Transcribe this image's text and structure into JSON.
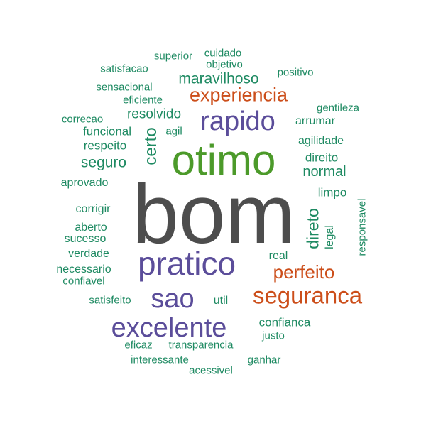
{
  "palette": {
    "dark_gray": "#4d4d4d",
    "green": "#4c9a2a",
    "purple": "#5b4d9a",
    "orange": "#cc4e1a",
    "teal": "#1e8a62"
  },
  "words": [
    {
      "text": "bom",
      "color": "#4d4d4d",
      "weight": 100,
      "orientation": "horizontal"
    },
    {
      "text": "otimo",
      "color": "#4c9a2a",
      "weight": 62,
      "orientation": "horizontal"
    },
    {
      "text": "pratico",
      "color": "#5b4d9a",
      "weight": 48,
      "orientation": "horizontal"
    },
    {
      "text": "excelente",
      "color": "#5b4d9a",
      "weight": 40,
      "orientation": "horizontal"
    },
    {
      "text": "sao",
      "color": "#5b4d9a",
      "weight": 38,
      "orientation": "horizontal"
    },
    {
      "text": "rapido",
      "color": "#5b4d9a",
      "weight": 38,
      "orientation": "horizontal"
    },
    {
      "text": "seguranca",
      "color": "#cc4e1a",
      "weight": 35,
      "orientation": "horizontal"
    },
    {
      "text": "experiencia",
      "color": "#cc4e1a",
      "weight": 28,
      "orientation": "horizontal"
    },
    {
      "text": "perfeito",
      "color": "#cc4e1a",
      "weight": 28,
      "orientation": "horizontal"
    },
    {
      "text": "certo",
      "color": "#1e8a62",
      "weight": 24,
      "orientation": "vertical"
    },
    {
      "text": "direto",
      "color": "#1e8a62",
      "weight": 24,
      "orientation": "vertical"
    },
    {
      "text": "maravilhoso",
      "color": "#1e8a62",
      "weight": 22,
      "orientation": "horizontal"
    },
    {
      "text": "seguro",
      "color": "#1e8a62",
      "weight": 22,
      "orientation": "horizontal"
    },
    {
      "text": "normal",
      "color": "#1e8a62",
      "weight": 21,
      "orientation": "horizontal"
    },
    {
      "text": "resolvido",
      "color": "#1e8a62",
      "weight": 20,
      "orientation": "horizontal"
    },
    {
      "text": "funcional",
      "color": "#1e8a62",
      "weight": 18,
      "orientation": "horizontal"
    },
    {
      "text": "respeito",
      "color": "#1e8a62",
      "weight": 18,
      "orientation": "horizontal"
    },
    {
      "text": "confianca",
      "color": "#1e8a62",
      "weight": 18,
      "orientation": "horizontal"
    },
    {
      "text": "direito",
      "color": "#1e8a62",
      "weight": 17,
      "orientation": "horizontal"
    },
    {
      "text": "limpo",
      "color": "#1e8a62",
      "weight": 17,
      "orientation": "horizontal"
    },
    {
      "text": "arrumar",
      "color": "#1e8a62",
      "weight": 16,
      "orientation": "horizontal"
    },
    {
      "text": "agilidade",
      "color": "#1e8a62",
      "weight": 16,
      "orientation": "horizontal"
    },
    {
      "text": "aprovado",
      "color": "#1e8a62",
      "weight": 16,
      "orientation": "horizontal"
    },
    {
      "text": "corrigir",
      "color": "#1e8a62",
      "weight": 16,
      "orientation": "horizontal"
    },
    {
      "text": "aberto",
      "color": "#1e8a62",
      "weight": 16,
      "orientation": "horizontal"
    },
    {
      "text": "sucesso",
      "color": "#1e8a62",
      "weight": 16,
      "orientation": "horizontal"
    },
    {
      "text": "verdade",
      "color": "#1e8a62",
      "weight": 16,
      "orientation": "horizontal"
    },
    {
      "text": "necessario",
      "color": "#1e8a62",
      "weight": 16,
      "orientation": "horizontal"
    },
    {
      "text": "real",
      "color": "#1e8a62",
      "weight": 16,
      "orientation": "horizontal"
    },
    {
      "text": "util",
      "color": "#1e8a62",
      "weight": 16,
      "orientation": "horizontal"
    },
    {
      "text": "legal",
      "color": "#1e8a62",
      "weight": 16,
      "orientation": "vertical"
    },
    {
      "text": "gentileza",
      "color": "#1e8a62",
      "weight": 15,
      "orientation": "horizontal"
    },
    {
      "text": "agil",
      "color": "#1e8a62",
      "weight": 15,
      "orientation": "horizontal"
    },
    {
      "text": "satisfeito",
      "color": "#1e8a62",
      "weight": 15,
      "orientation": "horizontal"
    },
    {
      "text": "confiavel",
      "color": "#1e8a62",
      "weight": 15,
      "orientation": "horizontal"
    },
    {
      "text": "justo",
      "color": "#1e8a62",
      "weight": 15,
      "orientation": "horizontal"
    },
    {
      "text": "eficaz",
      "color": "#1e8a62",
      "weight": 15,
      "orientation": "horizontal"
    },
    {
      "text": "transparencia",
      "color": "#1e8a62",
      "weight": 15,
      "orientation": "horizontal"
    },
    {
      "text": "interessante",
      "color": "#1e8a62",
      "weight": 15,
      "orientation": "horizontal"
    },
    {
      "text": "ganhar",
      "color": "#1e8a62",
      "weight": 15,
      "orientation": "horizontal"
    },
    {
      "text": "acessivel",
      "color": "#1e8a62",
      "weight": 15,
      "orientation": "horizontal"
    },
    {
      "text": "responsavel",
      "color": "#1e8a62",
      "weight": 15,
      "orientation": "vertical"
    },
    {
      "text": "positivo",
      "color": "#1e8a62",
      "weight": 15,
      "orientation": "horizontal"
    },
    {
      "text": "objetivo",
      "color": "#1e8a62",
      "weight": 15,
      "orientation": "horizontal"
    },
    {
      "text": "cuidado",
      "color": "#1e8a62",
      "weight": 15,
      "orientation": "horizontal"
    },
    {
      "text": "superior",
      "color": "#1e8a62",
      "weight": 15,
      "orientation": "horizontal"
    },
    {
      "text": "satisfacao",
      "color": "#1e8a62",
      "weight": 15,
      "orientation": "horizontal"
    },
    {
      "text": "sensacional",
      "color": "#1e8a62",
      "weight": 15,
      "orientation": "horizontal"
    },
    {
      "text": "eficiente",
      "color": "#1e8a62",
      "weight": 15,
      "orientation": "horizontal"
    },
    {
      "text": "correcao",
      "color": "#1e8a62",
      "weight": 15,
      "orientation": "horizontal"
    }
  ]
}
